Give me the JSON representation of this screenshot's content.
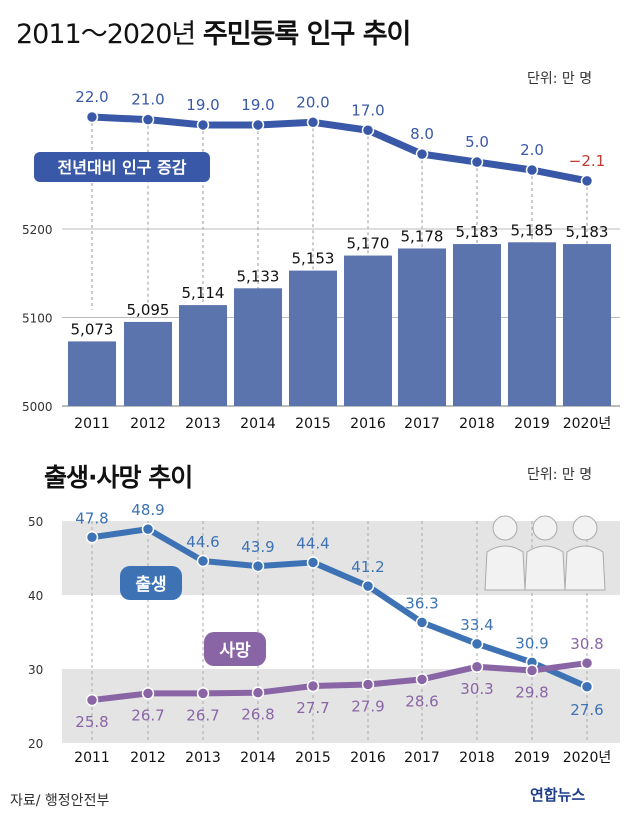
{
  "title_part1": "2011～2020년",
  "title_part2": "주민등록 인구 추이",
  "unit1": "단위: 만 명",
  "title2": "출생·사망 추이",
  "unit2": "단위: 만 명",
  "source": "자료/ 행정안전부",
  "logo": "연합뉴스",
  "colors": {
    "bar": "#5b74ad",
    "line_top": "#3a58a8",
    "birth": "#3d73b4",
    "death": "#8a65a6",
    "negative": "#c0392b",
    "band": "#e4e4e4"
  },
  "chart_data": [
    {
      "type": "line",
      "series": [
        {
          "name": "전년대비 인구 증감",
          "values": [
            22.0,
            21.0,
            19.0,
            19.0,
            20.0,
            17.0,
            8.0,
            5.0,
            2.0,
            -2.1
          ]
        }
      ],
      "labels": [
        "22.0",
        "21.0",
        "19.0",
        "19.0",
        "20.0",
        "17.0",
        "8.0",
        "5.0",
        "2.0",
        "−2.1"
      ],
      "categories": [
        "2011",
        "2012",
        "2013",
        "2014",
        "2015",
        "2016",
        "2017",
        "2018",
        "2019",
        "2020년"
      ]
    },
    {
      "type": "bar",
      "categories": [
        "2011",
        "2012",
        "2013",
        "2014",
        "2015",
        "2016",
        "2017",
        "2018",
        "2019",
        "2020년"
      ],
      "values": [
        5073,
        5095,
        5114,
        5133,
        5153,
        5170,
        5178,
        5183,
        5185,
        5183
      ],
      "labels": [
        "5,073",
        "5,095",
        "5,114",
        "5,133",
        "5,153",
        "5,170",
        "5,178",
        "5,183",
        "5,185",
        "5,183"
      ],
      "y_ticks": [
        "5000",
        "5100",
        "5200"
      ],
      "ylim": [
        5000,
        5200
      ]
    },
    {
      "type": "line",
      "categories": [
        "2011",
        "2012",
        "2013",
        "2014",
        "2015",
        "2016",
        "2017",
        "2018",
        "2019",
        "2020년"
      ],
      "series": [
        {
          "name": "출생",
          "values": [
            47.8,
            48.9,
            44.6,
            43.9,
            44.4,
            41.2,
            36.3,
            33.4,
            30.9,
            27.6
          ],
          "labels": [
            "47.8",
            "48.9",
            "44.6",
            "43.9",
            "44.4",
            "41.2",
            "36.3",
            "33.4",
            "30.9",
            "27.6"
          ]
        },
        {
          "name": "사망",
          "values": [
            25.8,
            26.7,
            26.7,
            26.8,
            27.7,
            27.9,
            28.6,
            30.3,
            29.8,
            30.8
          ],
          "labels": [
            "25.8",
            "26.7",
            "26.7",
            "26.8",
            "27.7",
            "27.9",
            "28.6",
            "30.3",
            "29.8",
            "30.8"
          ]
        }
      ],
      "y_ticks": [
        "20",
        "30",
        "40",
        "50"
      ],
      "ylim": [
        20,
        50
      ]
    }
  ]
}
